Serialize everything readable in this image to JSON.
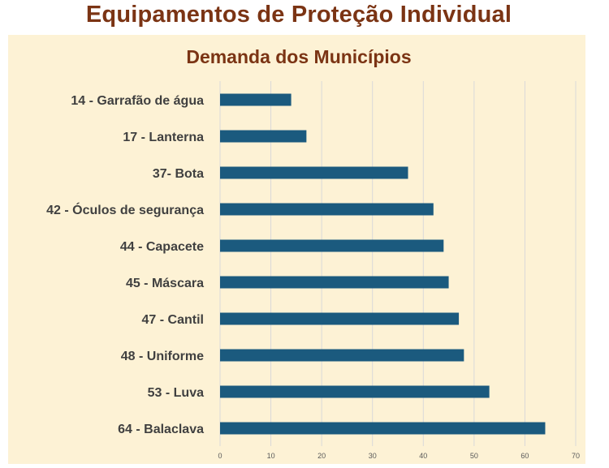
{
  "header": {
    "title": "Equipamentos de Proteção Individual"
  },
  "colors": {
    "title": "#7b3414",
    "panel_background": "#fdf2d5",
    "bar": "#1b5a7e",
    "gridline": "#d9d9d9"
  },
  "chart_data": {
    "type": "bar",
    "orientation": "horizontal",
    "title": "Demanda dos Municípios",
    "xlabel": "",
    "ylabel": "",
    "categories": [
      "14 - Garrafão de água",
      "17 - Lanterna",
      "37- Bota",
      "42 - Óculos de segurança",
      "44 - Capacete",
      "45 - Máscara",
      "47 - Cantil",
      "48 - Uniforme",
      "53 - Luva",
      "64 - Balaclava"
    ],
    "values": [
      14,
      17,
      37,
      42,
      44,
      45,
      47,
      48,
      53,
      64
    ],
    "xlim": [
      0,
      70
    ],
    "xticks": [
      0,
      10,
      20,
      30,
      40,
      50,
      60,
      70
    ],
    "grid": "vertical",
    "legend": "none"
  }
}
